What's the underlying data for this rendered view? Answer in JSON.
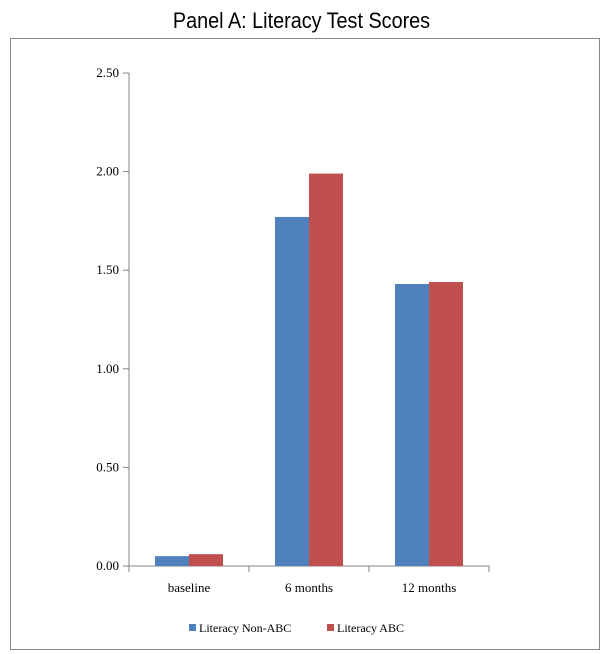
{
  "chart_data": {
    "type": "bar",
    "title": "Panel A:  Literacy Test Scores",
    "categories": [
      "baseline",
      "6 months",
      "12 months"
    ],
    "series": [
      {
        "name": "Literacy Non-ABC",
        "values": [
          0.05,
          1.77,
          1.43
        ],
        "color": "#4f81bd"
      },
      {
        "name": "Literacy ABC",
        "values": [
          0.06,
          1.99,
          1.44
        ],
        "color": "#c0504d"
      }
    ],
    "yticks": [
      "0.00",
      "0.50",
      "1.00",
      "1.50",
      "2.00",
      "2.50"
    ],
    "ylim": [
      0,
      2.5
    ],
    "grid": false,
    "legend": "bottom"
  }
}
